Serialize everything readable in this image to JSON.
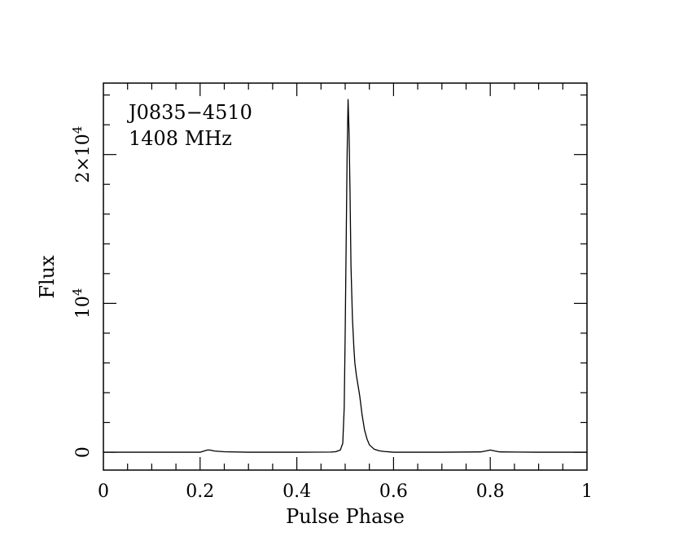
{
  "chart_data": {
    "type": "line",
    "xlabel": "Pulse Phase",
    "ylabel": "Flux",
    "xlim": [
      0,
      1
    ],
    "ylim": [
      -1200,
      24800
    ],
    "annotations": [
      "J0835−4510",
      "1408 MHz"
    ],
    "x_ticks": [
      {
        "value": 0,
        "label": "0"
      },
      {
        "value": 0.2,
        "label": "0.2"
      },
      {
        "value": 0.4,
        "label": "0.4"
      },
      {
        "value": 0.6,
        "label": "0.6"
      },
      {
        "value": 0.8,
        "label": "0.8"
      },
      {
        "value": 1,
        "label": "1"
      }
    ],
    "y_ticks": [
      {
        "value": 0,
        "base": "0",
        "exp": ""
      },
      {
        "value": 10000,
        "base": "10",
        "exp": "4"
      },
      {
        "value": 20000,
        "base": "2×10",
        "exp": "4"
      }
    ],
    "series": [
      {
        "x": [
          0,
          0.1,
          0.2,
          0.21,
          0.215,
          0.22,
          0.23,
          0.25,
          0.3,
          0.4,
          0.47,
          0.48,
          0.49,
          0.495,
          0.498,
          0.5,
          0.502,
          0.504,
          0.506,
          0.508,
          0.51,
          0.512,
          0.515,
          0.518,
          0.52,
          0.523,
          0.526,
          0.53,
          0.535,
          0.54,
          0.545,
          0.55,
          0.56,
          0.57,
          0.58,
          0.6,
          0.7,
          0.78,
          0.79,
          0.8,
          0.81,
          0.82,
          0.9,
          1
        ],
        "y": [
          0,
          0,
          0,
          100,
          150,
          150,
          80,
          30,
          0,
          0,
          10,
          30,
          150,
          600,
          3000,
          8000,
          14000,
          20000,
          23700,
          21500,
          17500,
          12500,
          9000,
          7000,
          6000,
          5200,
          4600,
          3800,
          2500,
          1500,
          900,
          500,
          200,
          100,
          50,
          0,
          0,
          20,
          80,
          150,
          80,
          20,
          0,
          0
        ]
      }
    ]
  }
}
